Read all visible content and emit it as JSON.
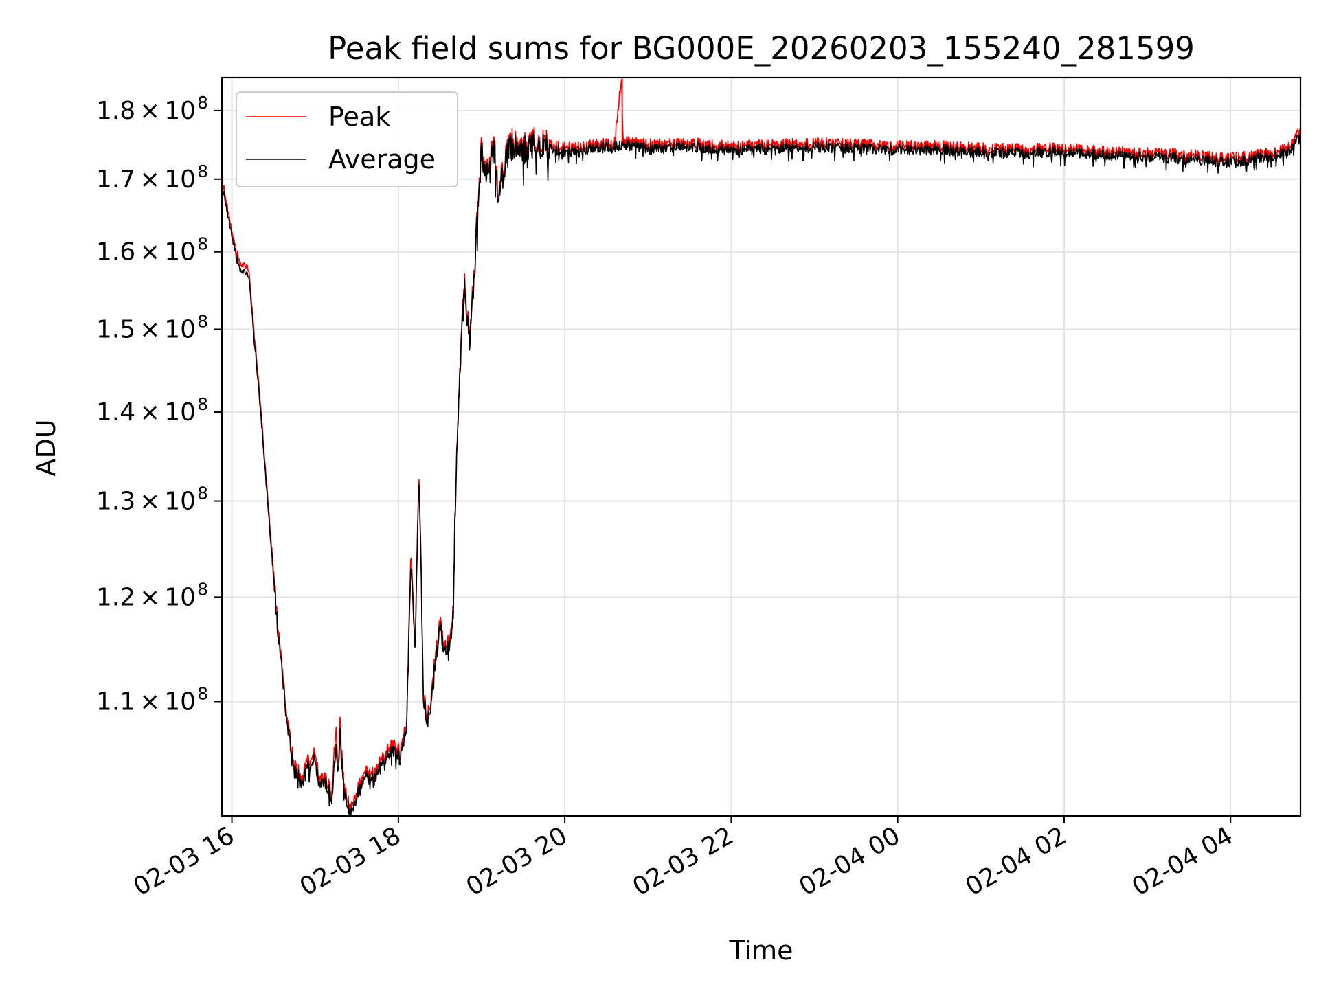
{
  "chart_data": {
    "type": "line",
    "title": "Peak field sums for BG000E_20260203_155240_281599",
    "xlabel": "Time",
    "ylabel": "ADU",
    "x_unit": "hours since 02-03 00:00",
    "xlim": [
      15.88,
      28.84
    ],
    "ylim": [
      100000000.0,
      185000000.0
    ],
    "yscale": "log",
    "grid": true,
    "legend_location": "upper left",
    "x_ticks": [
      {
        "value": 16,
        "label": "02-03 16"
      },
      {
        "value": 18,
        "label": "02-03 18"
      },
      {
        "value": 20,
        "label": "02-03 20"
      },
      {
        "value": 22,
        "label": "02-03 22"
      },
      {
        "value": 24,
        "label": "02-04 00"
      },
      {
        "value": 26,
        "label": "02-04 02"
      },
      {
        "value": 28,
        "label": "02-04 04"
      }
    ],
    "y_ticks": [
      {
        "value": 110000000,
        "mantissa": "1.1",
        "times": "×",
        "base": "10",
        "exponent": "8"
      },
      {
        "value": 120000000,
        "mantissa": "1.2",
        "times": "×",
        "base": "10",
        "exponent": "8"
      },
      {
        "value": 130000000,
        "mantissa": "1.3",
        "times": "×",
        "base": "10",
        "exponent": "8"
      },
      {
        "value": 140000000,
        "mantissa": "1.4",
        "times": "×",
        "base": "10",
        "exponent": "8"
      },
      {
        "value": 150000000,
        "mantissa": "1.5",
        "times": "×",
        "base": "10",
        "exponent": "8"
      },
      {
        "value": 160000000,
        "mantissa": "1.6",
        "times": "×",
        "base": "10",
        "exponent": "8"
      },
      {
        "value": 170000000,
        "mantissa": "1.7",
        "times": "×",
        "base": "10",
        "exponent": "8"
      },
      {
        "value": 180000000,
        "mantissa": "1.8",
        "times": "×",
        "base": "10",
        "exponent": "8"
      }
    ],
    "series": [
      {
        "name": "Peak",
        "color": "#ff0000",
        "x": [
          15.88,
          16.0,
          16.1,
          16.2,
          16.35,
          16.45,
          16.55,
          16.65,
          16.75,
          16.85,
          16.9,
          17.0,
          17.05,
          17.1,
          17.2,
          17.25,
          17.28,
          17.3,
          17.35,
          17.38,
          17.42,
          17.5,
          17.6,
          17.7,
          17.8,
          17.9,
          18.0,
          18.1,
          18.15,
          18.2,
          18.25,
          18.3,
          18.35,
          18.4,
          18.45,
          18.5,
          18.55,
          18.6,
          18.65,
          18.7,
          18.75,
          18.8,
          18.85,
          18.9,
          18.95,
          19.0,
          19.05,
          19.1,
          19.15,
          19.2,
          19.3,
          19.4,
          19.5,
          19.6,
          19.8,
          20.0,
          20.3,
          20.6,
          20.68,
          20.7,
          21.0,
          21.5,
          22.0,
          22.5,
          23.0,
          23.5,
          24.0,
          24.5,
          25.0,
          25.5,
          26.0,
          26.5,
          27.0,
          27.5,
          28.0,
          28.3,
          28.5,
          28.7,
          28.84
        ],
        "y": [
          170500000,
          162500000,
          158500000,
          157800000,
          140000000,
          128000000,
          117500000,
          109200000,
          104300000,
          103200000,
          104500000,
          105500000,
          103000000,
          103500000,
          102000000,
          107600000,
          104000000,
          108000000,
          102300000,
          101500000,
          100700000,
          102000000,
          103800000,
          103500000,
          104800000,
          106000000,
          105800000,
          107800000,
          125000000,
          115000000,
          133500000,
          111000000,
          108600000,
          110800000,
          114800000,
          117800000,
          115000000,
          115800000,
          117000000,
          135000000,
          148000000,
          157000000,
          148500000,
          155000000,
          165000000,
          175200000,
          170000000,
          172500000,
          175000000,
          168000000,
          174000000,
          176000000,
          174500000,
          175500000,
          175000000,
          174500000,
          175000000,
          175200000,
          185000000,
          175500000,
          175000000,
          175200000,
          174800000,
          175000000,
          175200000,
          175000000,
          174800000,
          174800000,
          174500000,
          174300000,
          174500000,
          174000000,
          173800000,
          173500000,
          173000000,
          173500000,
          173800000,
          174500000,
          177000000
        ]
      },
      {
        "name": "Average",
        "color": "#000000",
        "x": [
          15.88,
          16.0,
          16.1,
          16.2,
          16.35,
          16.45,
          16.55,
          16.65,
          16.75,
          16.85,
          16.9,
          17.0,
          17.05,
          17.1,
          17.2,
          17.25,
          17.28,
          17.3,
          17.35,
          17.38,
          17.42,
          17.5,
          17.6,
          17.7,
          17.8,
          17.9,
          18.0,
          18.1,
          18.15,
          18.2,
          18.25,
          18.3,
          18.35,
          18.4,
          18.45,
          18.5,
          18.55,
          18.6,
          18.65,
          18.7,
          18.75,
          18.8,
          18.85,
          18.9,
          18.95,
          19.0,
          19.05,
          19.1,
          19.15,
          19.2,
          19.3,
          19.4,
          19.5,
          19.6,
          19.8,
          20.0,
          20.3,
          20.6,
          20.68,
          20.7,
          21.0,
          21.5,
          22.0,
          22.5,
          23.0,
          23.5,
          24.0,
          24.5,
          25.0,
          25.5,
          26.0,
          26.5,
          27.0,
          27.5,
          28.0,
          28.3,
          28.5,
          28.7,
          28.84
        ],
        "y": [
          169800000,
          162000000,
          157800000,
          157000000,
          139500000,
          127500000,
          117000000,
          108800000,
          103900000,
          102800000,
          104000000,
          105000000,
          102600000,
          103100000,
          101600000,
          106000000,
          103600000,
          107000000,
          101900000,
          101100000,
          100300000,
          101600000,
          103400000,
          103100000,
          104400000,
          105500000,
          105400000,
          107400000,
          124000000,
          114500000,
          133000000,
          110500000,
          108200000,
          110400000,
          114300000,
          117300000,
          114600000,
          115300000,
          116500000,
          134500000,
          147500000,
          156500000,
          148000000,
          154500000,
          164500000,
          174600000,
          169500000,
          172000000,
          174500000,
          167500000,
          173500000,
          175500000,
          174000000,
          175000000,
          174500000,
          174000000,
          174500000,
          174700000,
          174900000,
          175000000,
          174500000,
          174700000,
          174300000,
          174500000,
          174700000,
          174500000,
          174300000,
          174300000,
          174000000,
          173800000,
          174000000,
          173500000,
          173300000,
          173000000,
          172500000,
          173000000,
          173300000,
          174000000,
          176200000
        ]
      }
    ]
  }
}
